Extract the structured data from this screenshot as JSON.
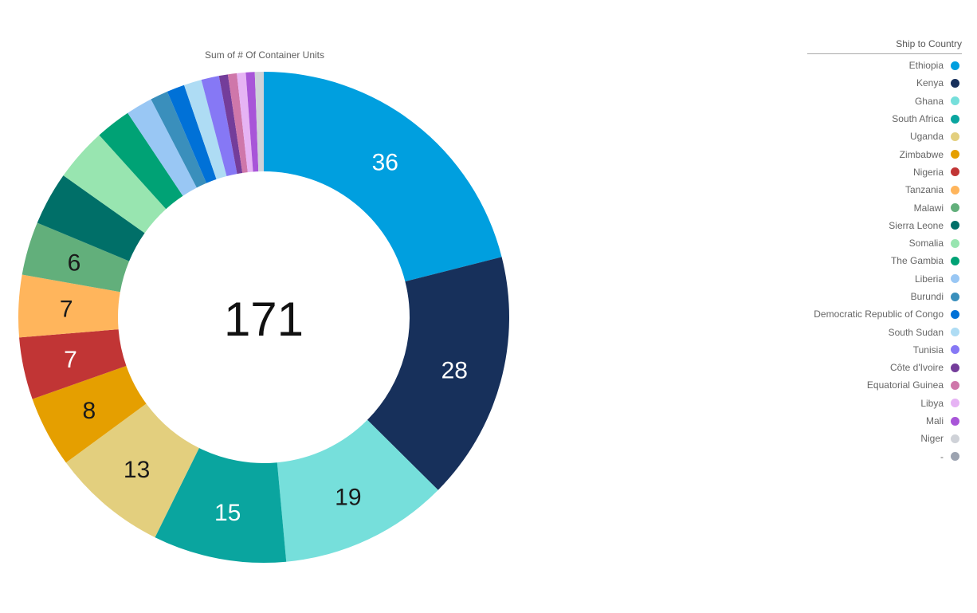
{
  "chart_data": {
    "type": "pie",
    "variant": "donut",
    "title": "Sum of # Of Container Units",
    "center_total": "171",
    "legend_title": "Ship to Country",
    "legend_position": "right",
    "slices": [
      {
        "label": "Ethiopia",
        "value": 36,
        "color": "#009fdf",
        "text_color": "#ffffff",
        "show_label": true
      },
      {
        "label": "Kenya",
        "value": 28,
        "color": "#17305b",
        "text_color": "#ffffff",
        "show_label": true
      },
      {
        "label": "Ghana",
        "value": 19,
        "color": "#76dfdb",
        "text_color": "#1a1a1a",
        "show_label": true
      },
      {
        "label": "South Africa",
        "value": 15,
        "color": "#0aa59f",
        "text_color": "#ffffff",
        "show_label": true
      },
      {
        "label": "Uganda",
        "value": 13,
        "color": "#e3cf7e",
        "text_color": "#1a1a1a",
        "show_label": true
      },
      {
        "label": "Zimbabwe",
        "value": 8,
        "color": "#e59f00",
        "text_color": "#1a1a1a",
        "show_label": true
      },
      {
        "label": "Nigeria",
        "value": 7,
        "color": "#c13535",
        "text_color": "#ffffff",
        "show_label": true
      },
      {
        "label": "Tanzania",
        "value": 7,
        "color": "#ffb55c",
        "text_color": "#1a1a1a",
        "show_label": true
      },
      {
        "label": "Malawi",
        "value": 6,
        "color": "#62af7b",
        "text_color": "#1a1a1a",
        "show_label": true
      },
      {
        "label": "Sierra Leone",
        "value": 6,
        "color": "#006f68",
        "text_color": "#ffffff",
        "show_label": false
      },
      {
        "label": "Somalia",
        "value": 6,
        "color": "#98e5b0",
        "text_color": "#1a1a1a",
        "show_label": false
      },
      {
        "label": "The Gambia",
        "value": 4,
        "color": "#00a275",
        "text_color": "#ffffff",
        "show_label": false
      },
      {
        "label": "Liberia",
        "value": 3,
        "color": "#99c7f4",
        "text_color": "#1a1a1a",
        "show_label": false
      },
      {
        "label": "Burundi",
        "value": 2,
        "color": "#3a8fbc",
        "text_color": "#ffffff",
        "show_label": false
      },
      {
        "label": "Democratic Republic of Congo",
        "value": 2,
        "color": "#0071d7",
        "text_color": "#ffffff",
        "show_label": false
      },
      {
        "label": "South Sudan",
        "value": 2,
        "color": "#aedcf4",
        "text_color": "#1a1a1a",
        "show_label": false
      },
      {
        "label": "Tunisia",
        "value": 2,
        "color": "#8678f5",
        "text_color": "#ffffff",
        "show_label": false
      },
      {
        "label": "Côte d'Ivoire",
        "value": 1,
        "color": "#743d9a",
        "text_color": "#ffffff",
        "show_label": false
      },
      {
        "label": "Equatorial Guinea",
        "value": 1,
        "color": "#cf77aa",
        "text_color": "#ffffff",
        "show_label": false
      },
      {
        "label": "Libya",
        "value": 1,
        "color": "#e6b3f4",
        "text_color": "#1a1a1a",
        "show_label": false
      },
      {
        "label": "Mali",
        "value": 1,
        "color": "#a855d8",
        "text_color": "#ffffff",
        "show_label": false
      },
      {
        "label": "Niger",
        "value": 1,
        "color": "#cfd2d8",
        "text_color": "#1a1a1a",
        "show_label": false
      },
      {
        "label": "-",
        "value": 0,
        "color": "#9ca3b0",
        "text_color": "#1a1a1a",
        "show_label": false
      }
    ]
  }
}
